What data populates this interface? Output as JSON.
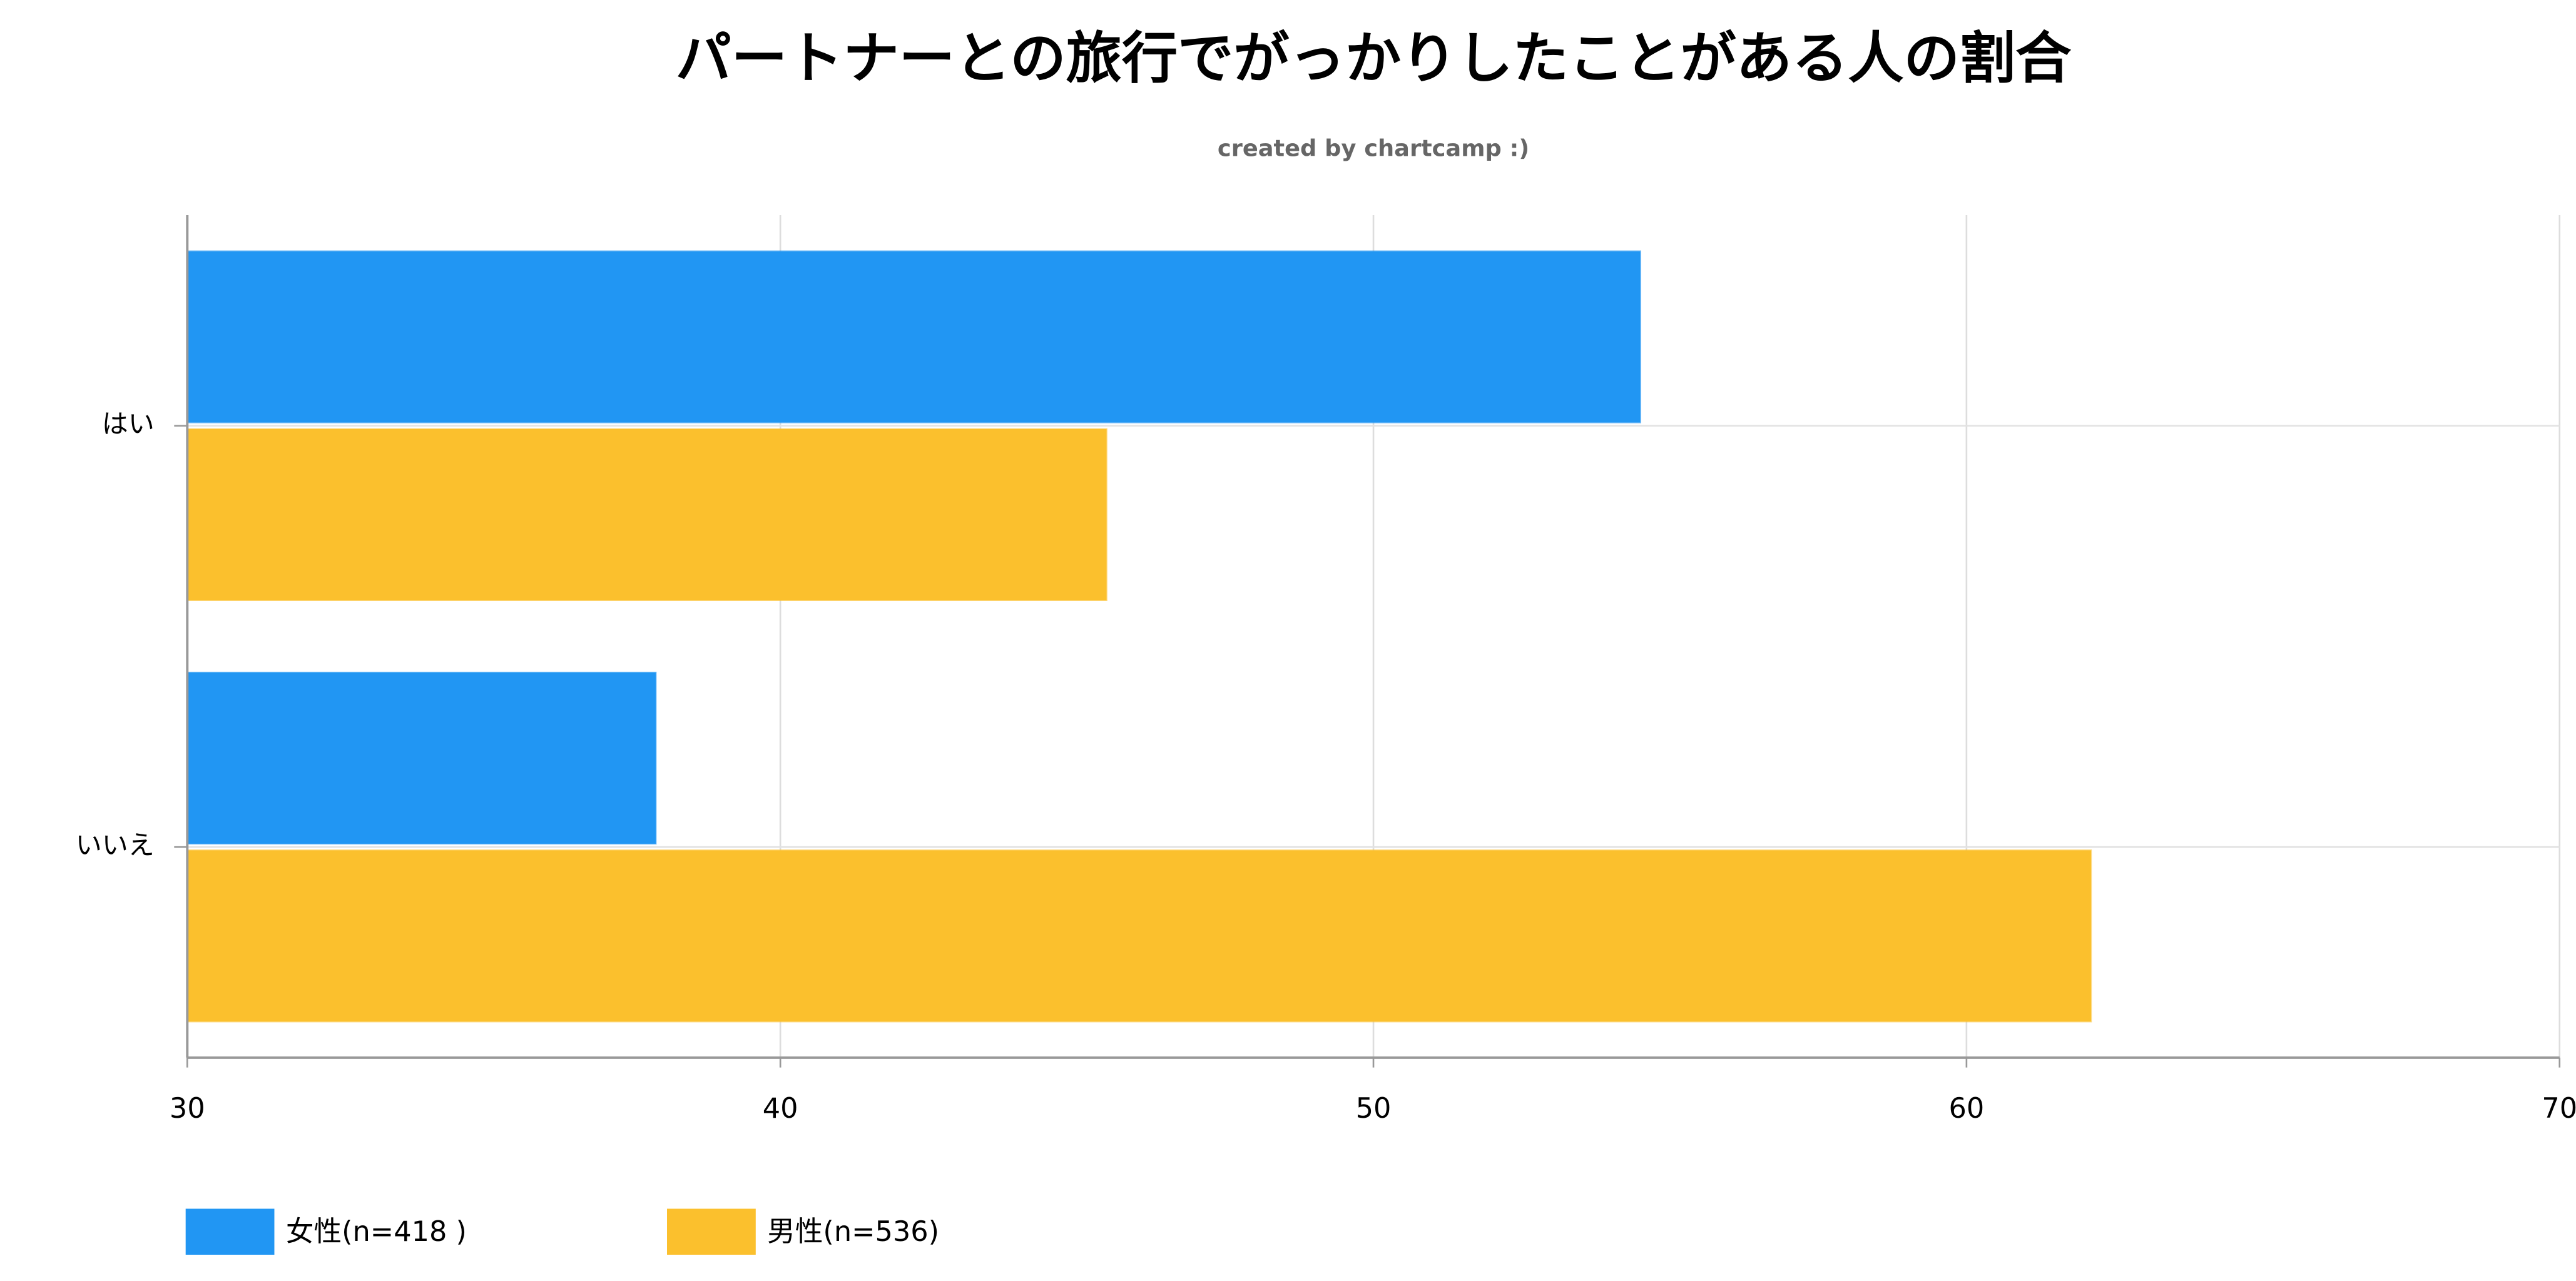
{
  "chart_data": {
    "type": "bar",
    "horizontal": true,
    "title": "パートナーとの旅行でがっかりしたことがある人の割合",
    "subtitle": "created by chartcamp :)",
    "categories": [
      "はい",
      "いいえ"
    ],
    "series": [
      {
        "name": "女性(n=418 )",
        "color": "#2196f3",
        "values": [
          54.5,
          37.9
        ]
      },
      {
        "name": "男性(n=536)",
        "color": "#fbc02d",
        "values": [
          45.5,
          62.1
        ]
      }
    ],
    "xlim": [
      30,
      70
    ],
    "xticks": [
      30,
      40,
      50,
      60,
      70
    ],
    "grid": true
  }
}
